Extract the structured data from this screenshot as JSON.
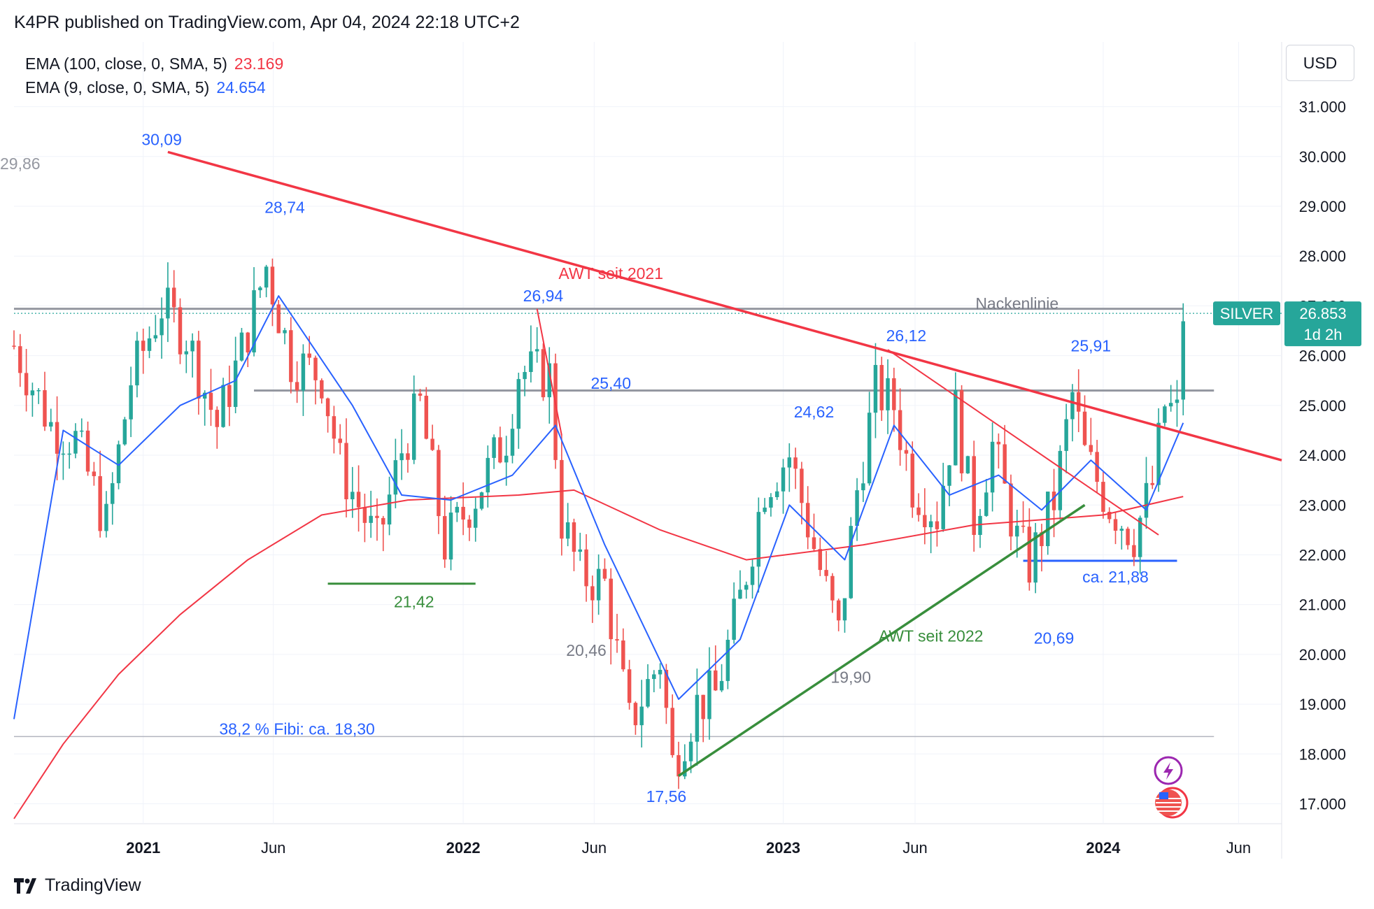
{
  "header": {
    "published": "K4PR published on TradingView.com, Apr 04, 2024 22:18 UTC+2"
  },
  "legend": {
    "ema100": {
      "label": "EMA (100, close, 0, SMA, 5)",
      "value": "23.169",
      "color": "#f23645"
    },
    "ema9": {
      "label": "EMA (9, close, 0, SMA, 5)",
      "value": "24.654",
      "color": "#2962ff"
    }
  },
  "currency_button": "USD",
  "symbol_badge": {
    "name": "SILVER",
    "price": "26.853",
    "countdown": "1d 2h"
  },
  "footer": {
    "brand": "TradingView"
  },
  "colors": {
    "up": "#26a69a",
    "down": "#ef5350",
    "trend_red": "#f23645",
    "trend_green": "#388e3c",
    "support_blue": "#2962ff",
    "level_gray": "#9598a1"
  },
  "chart_data": {
    "type": "candlestick",
    "timeframe": "weekly",
    "y_axis": {
      "ylim": [
        16.6,
        32.3
      ],
      "ticks": [
        "31.000",
        "30.000",
        "29.000",
        "28.000",
        "27.000",
        "26.000",
        "25.000",
        "24.000",
        "23.000",
        "22.000",
        "21.000",
        "20.000",
        "19.000",
        "18.000",
        "17.000"
      ]
    },
    "x_axis": {
      "range": [
        "2020-08-10",
        "2024-07-22"
      ],
      "ticks": [
        {
          "date": "2021-01-04",
          "label": "2021",
          "bold": true
        },
        {
          "date": "2021-06-01",
          "label": "Jun",
          "bold": false
        },
        {
          "date": "2022-01-03",
          "label": "2022",
          "bold": true
        },
        {
          "date": "2022-06-01",
          "label": "Jun",
          "bold": false
        },
        {
          "date": "2023-01-02",
          "label": "2023",
          "bold": true
        },
        {
          "date": "2023-06-01",
          "label": "Jun",
          "bold": false
        },
        {
          "date": "2024-01-01",
          "label": "2024",
          "bold": true
        },
        {
          "date": "2024-06-03",
          "label": "Jun",
          "bold": false
        }
      ]
    },
    "close_series": [
      {
        "x": "2020-08-10",
        "y": 26.2
      },
      {
        "x": "2020-09-21",
        "y": 24.6
      },
      {
        "x": "2020-10-19",
        "y": 24.3
      },
      {
        "x": "2020-11-23",
        "y": 22.6
      },
      {
        "x": "2020-12-21",
        "y": 25.5
      },
      {
        "x": "2021-01-25",
        "y": 27.0
      },
      {
        "x": "2021-02-22",
        "y": 26.4
      },
      {
        "x": "2021-03-29",
        "y": 24.6
      },
      {
        "x": "2021-04-26",
        "y": 26.1
      },
      {
        "x": "2021-05-24",
        "y": 27.8
      },
      {
        "x": "2021-06-21",
        "y": 25.9
      },
      {
        "x": "2021-07-26",
        "y": 25.6
      },
      {
        "x": "2021-08-16",
        "y": 23.8
      },
      {
        "x": "2021-09-27",
        "y": 22.2
      },
      {
        "x": "2021-10-25",
        "y": 24.1
      },
      {
        "x": "2021-11-15",
        "y": 25.0
      },
      {
        "x": "2021-12-13",
        "y": 22.2
      },
      {
        "x": "2022-01-17",
        "y": 23.2
      },
      {
        "x": "2022-02-21",
        "y": 24.4
      },
      {
        "x": "2022-03-07",
        "y": 25.7
      },
      {
        "x": "2022-04-11",
        "y": 25.6
      },
      {
        "x": "2022-04-25",
        "y": 22.7
      },
      {
        "x": "2022-05-16",
        "y": 21.6
      },
      {
        "x": "2022-06-13",
        "y": 21.4
      },
      {
        "x": "2022-07-11",
        "y": 18.6
      },
      {
        "x": "2022-08-15",
        "y": 19.9
      },
      {
        "x": "2022-08-29",
        "y": 17.8
      },
      {
        "x": "2022-09-26",
        "y": 19.0
      },
      {
        "x": "2022-10-17",
        "y": 19.2
      },
      {
        "x": "2022-11-14",
        "y": 21.1
      },
      {
        "x": "2022-12-12",
        "y": 23.4
      },
      {
        "x": "2023-01-09",
        "y": 24.0
      },
      {
        "x": "2023-02-13",
        "y": 21.7
      },
      {
        "x": "2023-03-06",
        "y": 20.4
      },
      {
        "x": "2023-03-27",
        "y": 23.3
      },
      {
        "x": "2023-04-17",
        "y": 25.3
      },
      {
        "x": "2023-05-08",
        "y": 25.0
      },
      {
        "x": "2023-05-29",
        "y": 23.4
      },
      {
        "x": "2023-06-26",
        "y": 22.8
      },
      {
        "x": "2023-07-17",
        "y": 24.9
      },
      {
        "x": "2023-08-07",
        "y": 22.7
      },
      {
        "x": "2023-08-28",
        "y": 24.2
      },
      {
        "x": "2023-09-25",
        "y": 22.3
      },
      {
        "x": "2023-10-09",
        "y": 21.8
      },
      {
        "x": "2023-11-06",
        "y": 23.1
      },
      {
        "x": "2023-11-27",
        "y": 25.2
      },
      {
        "x": "2023-12-11",
        "y": 24.0
      },
      {
        "x": "2024-01-08",
        "y": 23.0
      },
      {
        "x": "2024-02-05",
        "y": 22.4
      },
      {
        "x": "2024-02-26",
        "y": 23.4
      },
      {
        "x": "2024-03-11",
        "y": 25.0
      },
      {
        "x": "2024-03-25",
        "y": 24.8
      },
      {
        "x": "2024-04-01",
        "y": 26.85
      }
    ],
    "ema100": [
      {
        "x": "2020-08-10",
        "y": 16.7
      },
      {
        "x": "2020-10-05",
        "y": 18.2
      },
      {
        "x": "2020-12-07",
        "y": 19.6
      },
      {
        "x": "2021-02-15",
        "y": 20.8
      },
      {
        "x": "2021-05-03",
        "y": 21.9
      },
      {
        "x": "2021-07-26",
        "y": 22.8
      },
      {
        "x": "2021-11-01",
        "y": 23.1
      },
      {
        "x": "2022-03-07",
        "y": 23.2
      },
      {
        "x": "2022-05-09",
        "y": 23.3
      },
      {
        "x": "2022-08-15",
        "y": 22.5
      },
      {
        "x": "2022-11-21",
        "y": 21.9
      },
      {
        "x": "2023-04-03",
        "y": 22.2
      },
      {
        "x": "2023-08-07",
        "y": 22.6
      },
      {
        "x": "2024-01-01",
        "y": 22.8
      },
      {
        "x": "2024-04-01",
        "y": 23.17
      }
    ],
    "ema9": [
      {
        "x": "2020-08-10",
        "y": 18.7
      },
      {
        "x": "2020-10-05",
        "y": 24.5
      },
      {
        "x": "2020-12-07",
        "y": 23.8
      },
      {
        "x": "2021-02-15",
        "y": 25.0
      },
      {
        "x": "2021-04-19",
        "y": 25.5
      },
      {
        "x": "2021-06-07",
        "y": 27.2
      },
      {
        "x": "2021-08-30",
        "y": 25.0
      },
      {
        "x": "2021-10-25",
        "y": 23.2
      },
      {
        "x": "2021-12-20",
        "y": 23.1
      },
      {
        "x": "2022-02-28",
        "y": 23.6
      },
      {
        "x": "2022-04-18",
        "y": 24.6
      },
      {
        "x": "2022-06-13",
        "y": 22.2
      },
      {
        "x": "2022-09-05",
        "y": 19.1
      },
      {
        "x": "2022-11-14",
        "y": 20.3
      },
      {
        "x": "2023-01-09",
        "y": 23.0
      },
      {
        "x": "2023-03-13",
        "y": 21.9
      },
      {
        "x": "2023-05-08",
        "y": 24.6
      },
      {
        "x": "2023-07-10",
        "y": 23.2
      },
      {
        "x": "2023-09-04",
        "y": 23.6
      },
      {
        "x": "2023-10-23",
        "y": 22.9
      },
      {
        "x": "2023-12-18",
        "y": 23.9
      },
      {
        "x": "2024-02-19",
        "y": 22.9
      },
      {
        "x": "2024-04-01",
        "y": 24.65
      }
    ],
    "trendlines": [
      {
        "name": "AWT seit 2021",
        "color": "#f23645",
        "from": {
          "x": "2021-02-01",
          "y": 30.09
        },
        "to": {
          "x": "2024-07-22",
          "y": 23.9
        }
      },
      {
        "name": "AWT seit 2022",
        "color": "#388e3c",
        "from": {
          "x": "2022-09-05",
          "y": 17.56
        },
        "to": {
          "x": "2023-12-11",
          "y": 23.0
        }
      },
      {
        "name": "",
        "color": "#f23645",
        "thin": true,
        "from": {
          "x": "2023-05-01",
          "y": 26.12
        },
        "to": {
          "x": "2024-03-04",
          "y": 22.4
        }
      },
      {
        "name": "",
        "color": "#f23645",
        "thin": true,
        "from": {
          "x": "2022-03-28",
          "y": 26.94
        },
        "to": {
          "x": "2022-04-25",
          "y": 24.4
        }
      }
    ],
    "horizontal_lines": [
      {
        "y": 26.94,
        "label": "Nackenlinie",
        "color": "#9598a1",
        "from": "2020-08-10",
        "to": "2024-04-01"
      },
      {
        "y": 25.3,
        "label": "",
        "color": "#9598a1",
        "from": "2021-05-10",
        "to": "2024-05-06"
      },
      {
        "y": 18.35,
        "label": "",
        "color": "#b2b5be",
        "from": "2020-08-10",
        "to": "2024-05-06"
      },
      {
        "y": 21.42,
        "label": "",
        "color": "#388e3c",
        "from": "2021-08-02",
        "to": "2022-01-17"
      },
      {
        "y": 21.88,
        "label": "",
        "color": "#2962ff",
        "from": "2023-10-02",
        "to": "2024-03-25"
      }
    ],
    "annotations": [
      {
        "text": "29,86",
        "x": "2020-08-17",
        "y": 29.86,
        "color": "#9598a1"
      },
      {
        "text": "30,09",
        "x": "2021-01-25",
        "y": 30.34,
        "color": "#2962ff"
      },
      {
        "text": "28,74",
        "x": "2021-06-14",
        "y": 28.98,
        "color": "#2962ff"
      },
      {
        "text": "AWT seit 2021",
        "x": "2022-06-20",
        "y": 27.65,
        "color": "#f23645"
      },
      {
        "text": "26,94",
        "x": "2022-04-04",
        "y": 27.2,
        "color": "#2962ff"
      },
      {
        "text": "Nackenlinie",
        "x": "2023-09-25",
        "y": 27.05,
        "color": "#787b86"
      },
      {
        "text": "25,40",
        "x": "2022-06-20",
        "y": 25.45,
        "color": "#2962ff"
      },
      {
        "text": "26,12",
        "x": "2023-05-22",
        "y": 26.4,
        "color": "#2962ff"
      },
      {
        "text": "25,91",
        "x": "2023-12-18",
        "y": 26.2,
        "color": "#2962ff"
      },
      {
        "text": "24,62",
        "x": "2023-02-06",
        "y": 24.87,
        "color": "#2962ff"
      },
      {
        "text": "21,42",
        "x": "2021-11-08",
        "y": 21.06,
        "color": "#388e3c"
      },
      {
        "text": "20,46",
        "x": "2022-05-23",
        "y": 20.08,
        "color": "#787b86"
      },
      {
        "text": "ca. 21,88",
        "x": "2024-01-15",
        "y": 21.56,
        "color": "#2962ff"
      },
      {
        "text": "AWT seit 2022",
        "x": "2023-06-19",
        "y": 20.37,
        "color": "#388e3c"
      },
      {
        "text": "20,69",
        "x": "2023-11-06",
        "y": 20.33,
        "color": "#2962ff"
      },
      {
        "text": "19,90",
        "x": "2023-03-20",
        "y": 19.54,
        "color": "#787b86"
      },
      {
        "text": "38,2 % Fibi: ca. 18,30",
        "x": "2021-06-28",
        "y": 18.5,
        "color": "#2962ff"
      },
      {
        "text": "17,56",
        "x": "2022-08-22",
        "y": 17.15,
        "color": "#2962ff"
      }
    ]
  }
}
